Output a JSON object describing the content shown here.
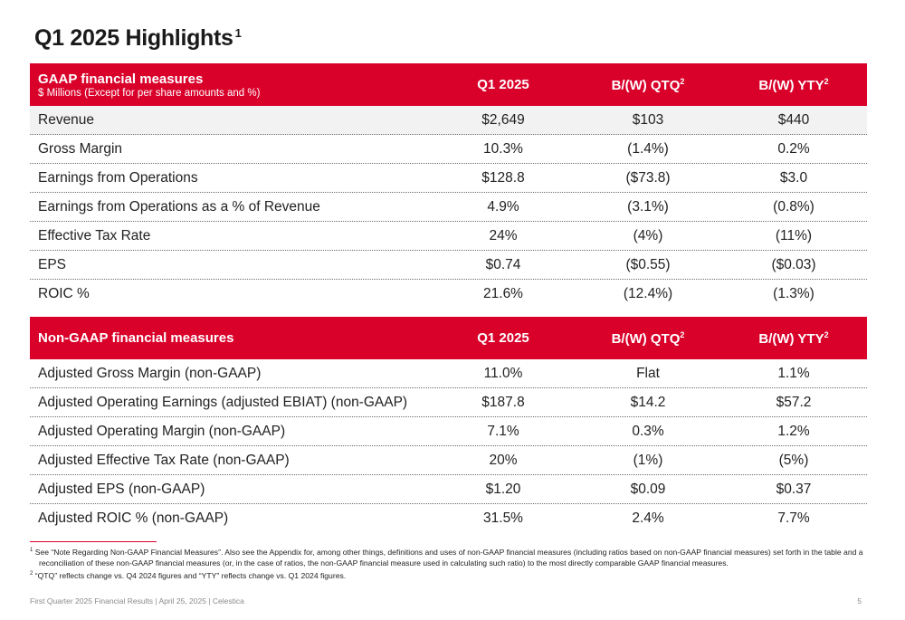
{
  "title": {
    "text": "Q1 2025 Highlights",
    "note": "1"
  },
  "gaap": {
    "heading": "GAAP financial measures",
    "subheading": "$ Millions (Except for per share amounts and %)",
    "col1": "Q1 2025",
    "col2": "B/(W) QTQ",
    "col2_note": "2",
    "col3": "B/(W) YTY",
    "col3_note": "2",
    "rows": [
      {
        "label": "Revenue",
        "q1": "$2,649",
        "qtq": "$103",
        "yty": "$440"
      },
      {
        "label": "Gross Margin",
        "q1": "10.3%",
        "qtq": "(1.4%)",
        "yty": "0.2%"
      },
      {
        "label": "Earnings from Operations",
        "q1": "$128.8",
        "qtq": "($73.8)",
        "yty": "$3.0"
      },
      {
        "label": "Earnings from Operations as a % of Revenue",
        "q1": "4.9%",
        "qtq": "(3.1%)",
        "yty": "(0.8%)"
      },
      {
        "label": "Effective Tax Rate",
        "q1": "24%",
        "qtq": "(4%)",
        "yty": "(11%)"
      },
      {
        "label": "EPS",
        "q1": "$0.74",
        "qtq": "($0.55)",
        "yty": "($0.03)"
      },
      {
        "label": "ROIC %",
        "q1": "21.6%",
        "qtq": "(12.4%)",
        "yty": "(1.3%)"
      }
    ]
  },
  "nongaap": {
    "heading": "Non-GAAP financial measures",
    "col1": "Q1 2025",
    "col2": "B/(W) QTQ",
    "col2_note": "2",
    "col3": "B/(W) YTY",
    "col3_note": "2",
    "rows": [
      {
        "label": "Adjusted Gross Margin (non-GAAP)",
        "q1": "11.0%",
        "qtq": "Flat",
        "yty": "1.1%"
      },
      {
        "label": "Adjusted Operating Earnings (adjusted EBIAT) (non-GAAP)",
        "q1": "$187.8",
        "qtq": "$14.2",
        "yty": "$57.2"
      },
      {
        "label": "Adjusted Operating Margin (non-GAAP)",
        "q1": "7.1%",
        "qtq": "0.3%",
        "yty": "1.2%"
      },
      {
        "label": "Adjusted Effective Tax Rate (non-GAAP)",
        "q1": "20%",
        "qtq": "(1%)",
        "yty": "(5%)"
      },
      {
        "label": "Adjusted EPS (non-GAAP)",
        "q1": "$1.20",
        "qtq": "$0.09",
        "yty": "$0.37"
      },
      {
        "label": "Adjusted ROIC % (non-GAAP)",
        "q1": "31.5%",
        "qtq": "2.4%",
        "yty": "7.7%"
      }
    ]
  },
  "footnotes": {
    "fn1_mark": "1",
    "fn1_line1": "See “Note Regarding Non-GAAP Financial Measures”. Also see the Appendix for, among other things, definitions and uses of non-GAAP financial measures (including ratios based on non-GAAP financial measures) set forth in the table and a",
    "fn1_line2": "reconciliation of these non-GAAP financial measures (or, in the case of ratios, the non-GAAP financial measure used in calculating such ratio) to the most directly comparable GAAP financial measures.",
    "fn2_mark": "2",
    "fn2_text": "“QTQ” reflects change vs. Q4 2024 figures and “YTY” reflects change vs. Q1 2024 figures."
  },
  "footer": {
    "text": "First Quarter 2025 Financial Results | April 25, 2025 | Celestica",
    "page": "5"
  },
  "colors": {
    "accent": "#d9002a",
    "shaded_row": "#f2f2f2"
  }
}
